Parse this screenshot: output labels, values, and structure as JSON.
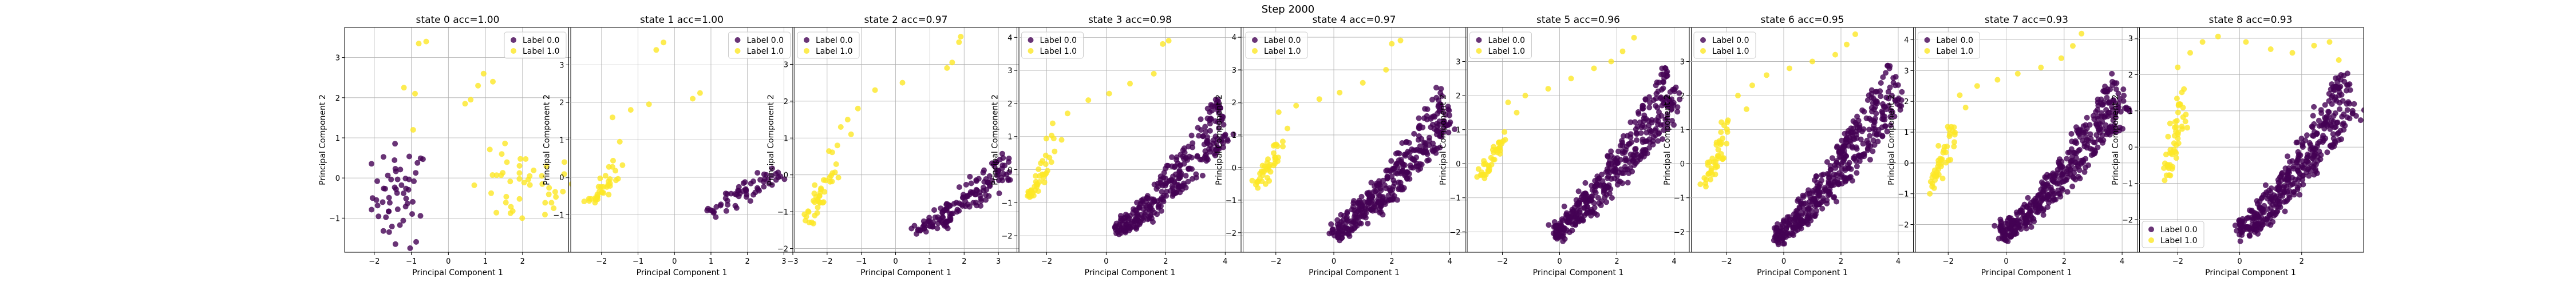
{
  "figure": {
    "suptitle": "Step 2000",
    "colors": {
      "label0": "#440154",
      "label1": "#fde725",
      "grid": "#b0b0b0",
      "axis": "#000000"
    }
  },
  "chart_data": [
    {
      "type": "scatter",
      "title": "state 0 acc=1.00",
      "xlabel": "Principal Component 1",
      "ylabel": "Principal Component 2",
      "xlim": [
        -2.8,
        3.3
      ],
      "ylim": [
        -1.85,
        3.75
      ],
      "xticks": [
        -2,
        -1,
        0,
        1,
        2
      ],
      "yticks": [
        -1,
        0,
        1,
        2,
        3
      ],
      "grid": true,
      "legend": {
        "placement": "top-right",
        "entries": [
          "Label 0.0",
          "Label 1.0"
        ]
      },
      "series": [
        {
          "name": "Label 0.0",
          "shape": "blob",
          "x": [
            -1.3,
            -1.0,
            -1.6,
            -0.6
          ],
          "y": [
            -0.45,
            0.0,
            -0.9,
            -1.2
          ],
          "n": 55
        },
        {
          "name": "Label 1.0",
          "shape": "blob",
          "x": [
            2.0,
            1.4,
            2.6,
            2.3
          ],
          "y": [
            -0.3,
            0.15,
            -0.5,
            -0.75
          ],
          "n": 45
        },
        {
          "name": "Label 1.0",
          "shape": "pts",
          "x": [
            -0.8,
            -0.6,
            -1.2,
            -0.9,
            0.8,
            0.95,
            1.2,
            0.45,
            0.6,
            -0.95
          ],
          "y": [
            3.35,
            3.4,
            2.25,
            2.1,
            2.3,
            2.6,
            2.4,
            1.85,
            1.95,
            1.2
          ]
        }
      ]
    },
    {
      "type": "scatter",
      "title": "state 1 acc=1.00",
      "xlabel": "Principal Component 1",
      "ylabel": "Principal Component 2",
      "xlim": [
        -2.9,
        3.3
      ],
      "ylim": [
        -2.0,
        4.0
      ],
      "xticks": [
        -2,
        -1,
        0,
        1,
        2,
        3
      ],
      "yticks": [
        -1,
        0,
        1,
        2,
        3
      ],
      "grid": true,
      "legend": {
        "placement": "top-right",
        "entries": [
          "Label 0.0",
          "Label 1.0"
        ]
      },
      "series": [
        {
          "name": "Label 0.0",
          "shape": "band",
          "x": [
            0.8,
            2.9
          ],
          "y": [
            -0.9,
            0.2
          ],
          "w": 0.55,
          "n": 60
        },
        {
          "name": "Label 1.0",
          "shape": "band",
          "x": [
            -2.3,
            -1.5
          ],
          "y": [
            -0.7,
            0.4
          ],
          "w": 0.5,
          "n": 35
        },
        {
          "name": "Label 1.0",
          "shape": "pts",
          "x": [
            -0.5,
            -0.3,
            -1.7,
            -1.2,
            0.5,
            0.7,
            -0.7,
            -1.5
          ],
          "y": [
            3.4,
            3.6,
            1.6,
            1.8,
            2.1,
            2.25,
            1.95,
            0.95
          ]
        }
      ]
    },
    {
      "type": "scatter",
      "title": "state 2 acc=0.97",
      "xlabel": "Principal Component 1",
      "ylabel": "Principal Component 2",
      "xlim": [
        -3.0,
        3.6
      ],
      "ylim": [
        -2.1,
        4.0
      ],
      "xticks": [
        -3,
        -2,
        -1,
        0,
        1,
        2,
        3
      ],
      "yticks": [
        -2,
        -1,
        0,
        1,
        2,
        3
      ],
      "grid": true,
      "legend": {
        "placement": "top-left",
        "entries": [
          "Label 0.0",
          "Label 1.0"
        ]
      },
      "series": [
        {
          "name": "Label 0.0",
          "shape": "band",
          "x": [
            0.6,
            3.3
          ],
          "y": [
            -1.5,
            0.3
          ],
          "w": 0.75,
          "n": 150
        },
        {
          "name": "Label 1.0",
          "shape": "band",
          "x": [
            -2.6,
            -1.8
          ],
          "y": [
            -1.2,
            0.5
          ],
          "w": 0.45,
          "n": 40
        },
        {
          "name": "Label 1.0",
          "shape": "pts",
          "x": [
            -1.6,
            -1.4,
            -1.1,
            -0.6,
            0.2,
            1.5,
            1.65,
            1.85,
            1.9,
            -1.3,
            -1.7
          ],
          "y": [
            1.3,
            1.5,
            1.8,
            2.3,
            2.5,
            2.9,
            3.05,
            3.6,
            3.75,
            1.1,
            0.8
          ]
        }
      ]
    },
    {
      "type": "scatter",
      "title": "state 3 acc=0.98",
      "xlabel": "Principal Component 1",
      "ylabel": "Principal Component 2",
      "xlim": [
        -3.0,
        4.6
      ],
      "ylim": [
        -2.5,
        4.3
      ],
      "xticks": [
        -2,
        0,
        2,
        4
      ],
      "yticks": [
        -2,
        -1,
        0,
        1,
        2,
        3,
        4
      ],
      "grid": true,
      "legend": {
        "placement": "top-left",
        "entries": [
          "Label 0.0",
          "Label 1.0"
        ]
      },
      "series": [
        {
          "name": "Label 0.0",
          "shape": "band",
          "x": [
            0.3,
            4.0
          ],
          "y": [
            -1.8,
            1.6
          ],
          "w": 1.2,
          "n": 300
        },
        {
          "name": "Label 1.0",
          "shape": "band",
          "x": [
            -2.6,
            -1.7
          ],
          "y": [
            -0.8,
            0.9
          ],
          "w": 0.5,
          "n": 40
        },
        {
          "name": "Label 1.0",
          "shape": "pts",
          "x": [
            -1.8,
            -1.3,
            -0.6,
            0.1,
            0.8,
            1.6,
            1.9,
            2.1,
            -1.5
          ],
          "y": [
            1.4,
            1.7,
            2.1,
            2.3,
            2.6,
            2.9,
            3.8,
            3.9,
            0.9
          ]
        }
      ]
    },
    {
      "type": "scatter",
      "title": "state 4 acc=0.97",
      "xlabel": "Principal Component 1",
      "ylabel": "Principal Component 2",
      "xlim": [
        -3.2,
        4.6
      ],
      "ylim": [
        -2.6,
        4.3
      ],
      "xticks": [
        -2,
        0,
        2,
        4
      ],
      "yticks": [
        -2,
        -1,
        0,
        1,
        2,
        3,
        4
      ],
      "grid": true,
      "legend": {
        "placement": "top-left",
        "entries": [
          "Label 0.0",
          "Label 1.0"
        ]
      },
      "series": [
        {
          "name": "Label 0.0",
          "shape": "band",
          "x": [
            0.0,
            4.0
          ],
          "y": [
            -2.0,
            1.9
          ],
          "w": 1.3,
          "n": 360
        },
        {
          "name": "Label 1.0",
          "shape": "band",
          "x": [
            -2.7,
            -1.8
          ],
          "y": [
            -0.5,
            0.8
          ],
          "w": 0.5,
          "n": 40
        },
        {
          "name": "Label 1.0",
          "shape": "pts",
          "x": [
            -1.9,
            -1.3,
            -0.5,
            0.2,
            1.0,
            1.8,
            2.0,
            2.3,
            -1.6
          ],
          "y": [
            1.7,
            1.9,
            2.1,
            2.3,
            2.6,
            3.0,
            3.8,
            3.9,
            1.2
          ]
        }
      ]
    },
    {
      "type": "scatter",
      "title": "state 5 acc=0.96",
      "xlabel": "Principal Component 1",
      "ylabel": "Principal Component 2",
      "xlim": [
        -3.3,
        4.6
      ],
      "ylim": [
        -2.6,
        4.0
      ],
      "xticks": [
        -2,
        0,
        2,
        4
      ],
      "yticks": [
        -2,
        -1,
        0,
        1,
        2,
        3
      ],
      "grid": true,
      "legend": {
        "placement": "top-left",
        "entries": [
          "Label 0.0",
          "Label 1.0"
        ]
      },
      "series": [
        {
          "name": "Label 0.0",
          "shape": "band",
          "x": [
            -0.2,
            4.0
          ],
          "y": [
            -2.0,
            2.3
          ],
          "w": 1.35,
          "n": 400
        },
        {
          "name": "Label 1.0",
          "shape": "band",
          "x": [
            -2.8,
            -1.9
          ],
          "y": [
            -0.4,
            1.0
          ],
          "w": 0.5,
          "n": 40
        },
        {
          "name": "Label 1.0",
          "shape": "pts",
          "x": [
            -1.8,
            -1.2,
            -0.4,
            0.4,
            1.2,
            1.8,
            2.2,
            2.6,
            -1.5
          ],
          "y": [
            1.8,
            2.0,
            2.2,
            2.5,
            2.8,
            3.0,
            3.3,
            3.7,
            1.5
          ]
        }
      ]
    },
    {
      "type": "scatter",
      "title": "state 6 acc=0.95",
      "xlabel": "Principal Component 1",
      "ylabel": "Principal Component 2",
      "xlim": [
        -3.3,
        4.6
      ],
      "ylim": [
        -2.6,
        4.0
      ],
      "xticks": [
        -2,
        0,
        2,
        4
      ],
      "yticks": [
        -2,
        -1,
        0,
        1,
        2,
        3
      ],
      "grid": true,
      "legend": {
        "placement": "top-left",
        "entries": [
          "Label 0.0",
          "Label 1.0"
        ]
      },
      "series": [
        {
          "name": "Label 0.0",
          "shape": "band",
          "x": [
            -0.3,
            4.0
          ],
          "y": [
            -2.1,
            2.4
          ],
          "w": 1.4,
          "n": 420
        },
        {
          "name": "Label 1.0",
          "shape": "band",
          "x": [
            -2.8,
            -1.9
          ],
          "y": [
            -0.6,
            1.1
          ],
          "w": 0.5,
          "n": 45
        },
        {
          "name": "Label 1.0",
          "shape": "pts",
          "x": [
            -1.6,
            -1.1,
            -0.6,
            0.2,
            1.0,
            1.8,
            2.2,
            2.5,
            -1.3
          ],
          "y": [
            2.0,
            2.3,
            2.6,
            2.8,
            3.0,
            3.2,
            3.5,
            3.8,
            1.6
          ]
        }
      ]
    },
    {
      "type": "scatter",
      "title": "state 7 acc=0.93",
      "xlabel": "Principal Component 1",
      "ylabel": "Principal Component 2",
      "xlim": [
        -3.2,
        4.6
      ],
      "ylim": [
        -2.9,
        4.4
      ],
      "xticks": [
        -2,
        0,
        2,
        4
      ],
      "yticks": [
        -2,
        -1,
        0,
        1,
        2,
        3,
        4
      ],
      "grid": true,
      "legend": {
        "placement": "top-left",
        "entries": [
          "Label 0.0",
          "Label 1.0"
        ]
      },
      "series": [
        {
          "name": "Label 0.0",
          "shape": "band",
          "x": [
            -0.2,
            4.0
          ],
          "y": [
            -2.3,
            2.3
          ],
          "w": 1.35,
          "n": 420
        },
        {
          "name": "Label 1.0",
          "shape": "band",
          "x": [
            -2.7,
            -1.8
          ],
          "y": [
            -0.9,
            1.2
          ],
          "w": 0.5,
          "n": 45
        },
        {
          "name": "Label 1.0",
          "shape": "pts",
          "x": [
            -1.6,
            -1.0,
            -0.3,
            0.4,
            1.2,
            1.9,
            2.3,
            2.6,
            -1.4
          ],
          "y": [
            2.2,
            2.5,
            2.7,
            2.9,
            3.1,
            3.4,
            3.8,
            4.2,
            1.8
          ]
        }
      ]
    },
    {
      "type": "scatter",
      "title": "state 8 acc=0.93",
      "xlabel": "Principal Component 1",
      "ylabel": "Principal Component 2",
      "xlim": [
        -3.3,
        4.0
      ],
      "ylim": [
        -2.9,
        3.3
      ],
      "xticks": [
        -2,
        0,
        2
      ],
      "yticks": [
        -2,
        -1,
        0,
        1,
        2,
        3
      ],
      "grid": true,
      "legend": {
        "placement": "bottom-left",
        "entries": [
          "Label 0.0",
          "Label 1.0"
        ]
      },
      "series": [
        {
          "name": "Label 0.0",
          "shape": "band",
          "x": [
            0.0,
            3.6
          ],
          "y": [
            -2.3,
            1.6
          ],
          "w": 1.3,
          "n": 400
        },
        {
          "name": "Label 1.0",
          "shape": "band",
          "x": [
            -2.4,
            -1.8
          ],
          "y": [
            -0.9,
            1.3
          ],
          "w": 0.55,
          "n": 50
        },
        {
          "name": "Label 1.0",
          "shape": "pts",
          "x": [
            -2.0,
            -1.6,
            -1.2,
            -0.7,
            0.2,
            1.0,
            1.7,
            2.4,
            2.9,
            3.2,
            -1.8
          ],
          "y": [
            2.2,
            2.6,
            2.9,
            3.05,
            2.9,
            2.7,
            2.6,
            2.8,
            2.9,
            2.4,
            1.6
          ]
        }
      ]
    }
  ]
}
